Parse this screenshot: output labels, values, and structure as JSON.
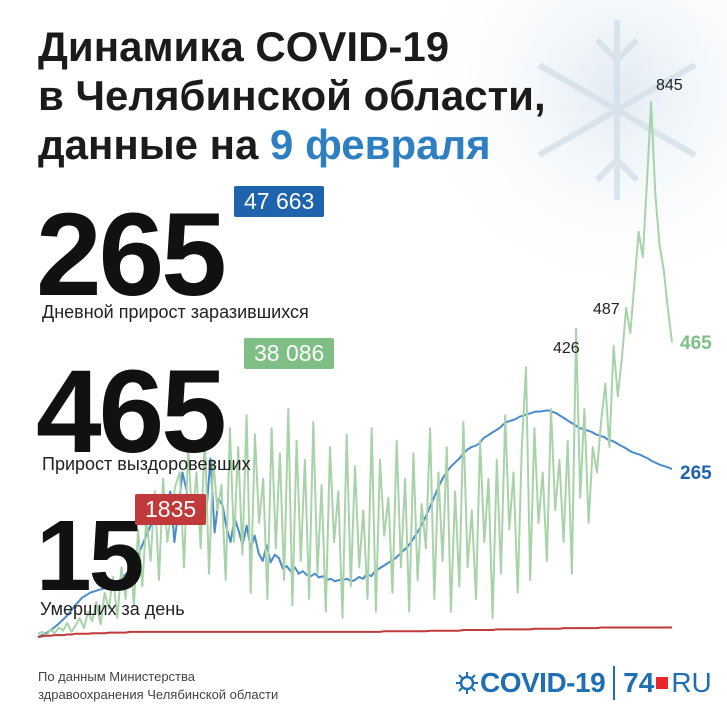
{
  "title": {
    "line1": "Динамика COVID-19",
    "line2": "в Челябинской области,",
    "line3_prefix": "данные на ",
    "line3_date": "9 февраля"
  },
  "stats": {
    "infected": {
      "daily": "265",
      "total": "47 663",
      "label": "Дневной прирост заразившихся",
      "color": "#1f63ad"
    },
    "recovered": {
      "daily": "465",
      "total": "38 086",
      "label": "Прирост выздоровевших",
      "color": "#7fbf85"
    },
    "deaths": {
      "daily": "15",
      "total": "1835",
      "label": "Умерших за день",
      "color": "#c0393b"
    }
  },
  "chart_data": {
    "type": "line",
    "x_range": [
      0,
      330
    ],
    "ylim": [
      0,
      900
    ],
    "annotations": {
      "peak_426": "426",
      "peak_487": "487",
      "peak_845": "845",
      "end_recovered": "465",
      "end_infected": "265"
    },
    "series": [
      {
        "key": "infected",
        "color": "#4a8cc9",
        "values": [
          0,
          3,
          6,
          10,
          15,
          20,
          26,
          32,
          40,
          48,
          55,
          62,
          66,
          70,
          72,
          74,
          76,
          78,
          80,
          84,
          88,
          94,
          100,
          108,
          118,
          130,
          145,
          160,
          175,
          185,
          196,
          205,
          210,
          230,
          150,
          200,
          260,
          232,
          190,
          224,
          210,
          185,
          200,
          282,
          165,
          218,
          208,
          172,
          150,
          188,
          168,
          145,
          176,
          140,
          160,
          132,
          120,
          145,
          118,
          130,
          125,
          108,
          112,
          104,
          110,
          100,
          104,
          98,
          96,
          100,
          94,
          96,
          90,
          92,
          88,
          90,
          90,
          92,
          88,
          90,
          95,
          92,
          100,
          96,
          104,
          108,
          112,
          116,
          120,
          124,
          130,
          136,
          142,
          150,
          160,
          170,
          182,
          195,
          210,
          225,
          240,
          252,
          262,
          270,
          276,
          282,
          290,
          296,
          300,
          302,
          306,
          314,
          318,
          322,
          326,
          330,
          336,
          340,
          342,
          344,
          348,
          350,
          352,
          354,
          356,
          356,
          357,
          358,
          356,
          354,
          350,
          346,
          342,
          338,
          334,
          330,
          328,
          326,
          324,
          320,
          318,
          316,
          312,
          310,
          307,
          303,
          300,
          296,
          292,
          290,
          288,
          285,
          282,
          278,
          275,
          272,
          270,
          268,
          265
        ]
      },
      {
        "key": "recovered",
        "color": "#a8d3a9",
        "values": [
          5,
          8,
          2,
          12,
          6,
          15,
          10,
          22,
          8,
          18,
          30,
          14,
          40,
          25,
          55,
          20,
          70,
          45,
          95,
          30,
          110,
          60,
          140,
          50,
          170,
          80,
          190,
          120,
          230,
          90,
          250,
          150,
          200,
          240,
          260,
          110,
          300,
          180,
          260,
          140,
          320,
          100,
          280,
          200,
          240,
          90,
          330,
          150,
          300,
          130,
          350,
          70,
          320,
          180,
          250,
          60,
          330,
          140,
          290,
          90,
          360,
          50,
          310,
          120,
          280,
          60,
          340,
          100,
          240,
          40,
          300,
          150,
          230,
          30,
          320,
          80,
          270,
          110,
          200,
          60,
          330,
          40,
          280,
          160,
          220,
          70,
          310,
          110,
          250,
          40,
          290,
          90,
          210,
          140,
          330,
          60,
          260,
          120,
          300,
          40,
          230,
          80,
          340,
          110,
          200,
          60,
          310,
          150,
          250,
          30,
          280,
          100,
          350,
          170,
          260,
          70,
          300,
          426,
          90,
          330,
          180,
          260,
          120,
          360,
          200,
          280,
          150,
          310,
          100,
          487,
          220,
          360,
          180,
          300,
          260,
          340,
          400,
          300,
          460,
          380,
          440,
          520,
          480,
          560,
          640,
          600,
          720,
          845,
          700,
          620,
          580,
          520,
          465
        ]
      },
      {
        "key": "deaths",
        "color": "#c0393b",
        "values": [
          0,
          1,
          2,
          2,
          3,
          3,
          3,
          4,
          4,
          5,
          5,
          5,
          5,
          6,
          6,
          6,
          6,
          7,
          7,
          7,
          7,
          7,
          8,
          8,
          8,
          8,
          8,
          8,
          8,
          8,
          8,
          8,
          8,
          8,
          8,
          8,
          8,
          8,
          8,
          8,
          8,
          8,
          8,
          8,
          8,
          8,
          8,
          8,
          8,
          8,
          8,
          8,
          8,
          8,
          8,
          8,
          8,
          8,
          8,
          8,
          8,
          8,
          8,
          8,
          8,
          8,
          8,
          8,
          8,
          8,
          8,
          8,
          8,
          8,
          8,
          8,
          8,
          8,
          8,
          8,
          8,
          8,
          8,
          9,
          9,
          9,
          9,
          9,
          9,
          9,
          9,
          9,
          9,
          9,
          10,
          10,
          10,
          10,
          10,
          10,
          10,
          10,
          11,
          11,
          11,
          11,
          11,
          11,
          11,
          11,
          12,
          12,
          12,
          12,
          12,
          12,
          12,
          12,
          12,
          13,
          13,
          13,
          13,
          13,
          13,
          13,
          14,
          14,
          14,
          14,
          14,
          14,
          14,
          14,
          14,
          15,
          15,
          15,
          15,
          15,
          15,
          15,
          15,
          15,
          15,
          15,
          15,
          15,
          15,
          15,
          15,
          15,
          15
        ]
      }
    ]
  },
  "source": {
    "line1": "По данным Министерства",
    "line2": "здравоохранения Челябинской области"
  },
  "logo": {
    "covid": "COVID-19",
    "num": "74",
    "ru": "RU"
  }
}
